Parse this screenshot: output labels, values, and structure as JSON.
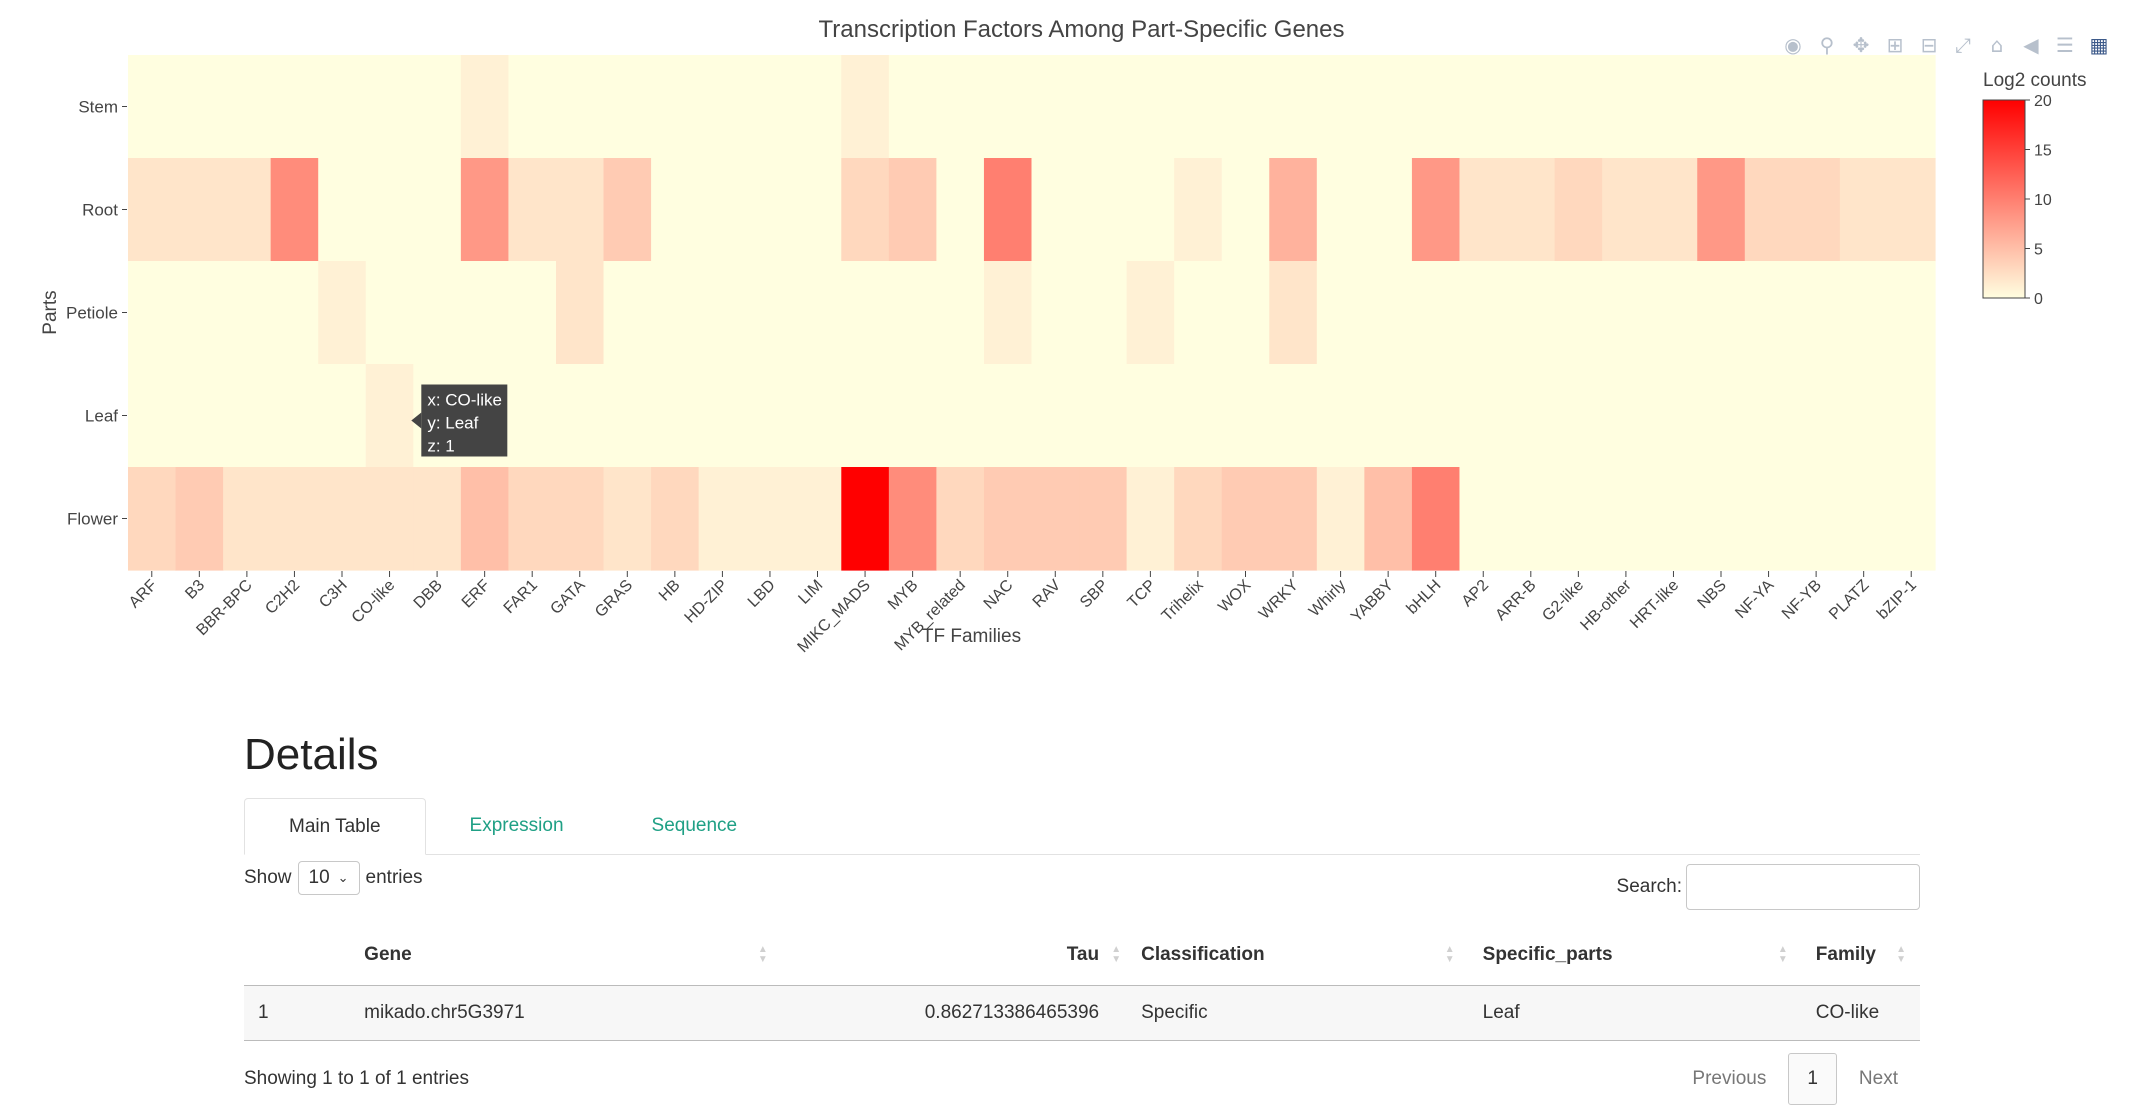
{
  "chart_data": {
    "type": "heatmap",
    "title": "Transcription Factors Among Part-Specific Genes",
    "xlabel": "TF Families",
    "ylabel": "Parts",
    "x": [
      "ARF",
      "B3",
      "BBR-BPC",
      "C2H2",
      "C3H",
      "CO-like",
      "DBB",
      "ERF",
      "FAR1",
      "GATA",
      "GRAS",
      "HB",
      "HD-ZIP",
      "LBD",
      "LIM",
      "MIKC_MADS",
      "MYB",
      "MYB_related",
      "NAC",
      "RAV",
      "SBP",
      "TCP",
      "Trihelix",
      "WOX",
      "WRKY",
      "Whirly",
      "YABBY",
      "bHLH",
      "AP2",
      "ARR-B",
      "G2-like",
      "HB-other",
      "HRT-like",
      "NBS",
      "NF-YA",
      "NF-YB",
      "PLATZ",
      "bZIP-1"
    ],
    "y": [
      "Stem",
      "Root",
      "Petiole",
      "Leaf",
      "Flower"
    ],
    "z": [
      [
        0,
        0,
        0,
        0,
        0,
        0,
        0,
        1,
        0,
        0,
        0,
        0,
        0,
        0,
        0,
        1,
        0,
        0,
        0,
        0,
        0,
        0,
        0,
        0,
        0,
        0,
        0,
        0,
        0,
        0,
        0,
        0,
        0,
        0,
        0,
        0,
        0,
        0
      ],
      [
        2,
        2,
        2,
        9,
        0,
        0,
        0,
        8,
        2,
        2,
        4,
        0,
        0,
        0,
        0,
        3,
        4,
        0,
        10,
        0,
        0,
        0,
        1,
        0,
        6,
        0,
        0,
        8,
        2,
        2,
        3,
        2,
        2,
        8,
        3,
        3,
        2,
        2
      ],
      [
        0,
        0,
        0,
        0,
        1,
        0,
        0,
        0,
        0,
        2,
        0,
        0,
        0,
        0,
        0,
        0,
        0,
        0,
        1,
        0,
        0,
        1,
        0,
        0,
        2,
        0,
        0,
        0,
        0,
        0,
        0,
        0,
        0,
        0,
        0,
        0,
        0,
        0
      ],
      [
        0,
        0,
        0,
        0,
        0,
        1,
        0,
        0,
        0,
        0,
        0,
        0,
        0,
        0,
        0,
        0,
        0,
        0,
        0,
        0,
        0,
        0,
        0,
        0,
        0,
        0,
        0,
        0,
        0,
        0,
        0,
        0,
        0,
        0,
        0,
        0,
        0,
        0
      ],
      [
        3,
        4,
        2,
        2,
        2,
        2,
        2,
        5,
        3,
        3,
        2,
        3,
        1,
        1,
        1,
        20,
        9,
        3,
        4,
        4,
        4,
        1,
        3,
        4,
        4,
        1,
        5,
        10,
        0,
        0,
        0,
        0,
        0,
        0,
        0,
        0,
        0,
        0
      ]
    ],
    "colorbar": {
      "title": "Log2 counts",
      "range": [
        0,
        20
      ],
      "ticks": [
        0,
        5,
        10,
        15,
        20
      ],
      "colors": [
        "#fffee0",
        "#ff0000"
      ]
    },
    "hover": {
      "x_label": "x: CO-like",
      "y_label": "y: Leaf",
      "z_label": "z: 1"
    }
  },
  "modebar": [
    "camera-icon",
    "zoom-icon",
    "pan-icon",
    "zoom-in-icon",
    "zoom-out-icon",
    "autoscale-icon",
    "home-icon",
    "spike-icon",
    "compare-icon",
    "plotly-logo-icon"
  ],
  "details": {
    "title": "Details",
    "tabs": [
      "Main Table",
      "Expression",
      "Sequence"
    ],
    "show_label": "Show",
    "page_size": "10",
    "entries_label": "entries",
    "search_label": "Search:",
    "columns": [
      "Gene",
      "Tau",
      "Classification",
      "Specific_parts",
      "Family"
    ],
    "rows": [
      {
        "index": "1",
        "gene": "mikado.chr5G3971",
        "tau": "0.862713386465396",
        "classification": "Specific",
        "specific_parts": "Leaf",
        "family": "CO-like"
      }
    ],
    "info": "Showing 1 to 1 of 1 entries",
    "previous": "Previous",
    "current_page": "1",
    "next": "Next"
  }
}
